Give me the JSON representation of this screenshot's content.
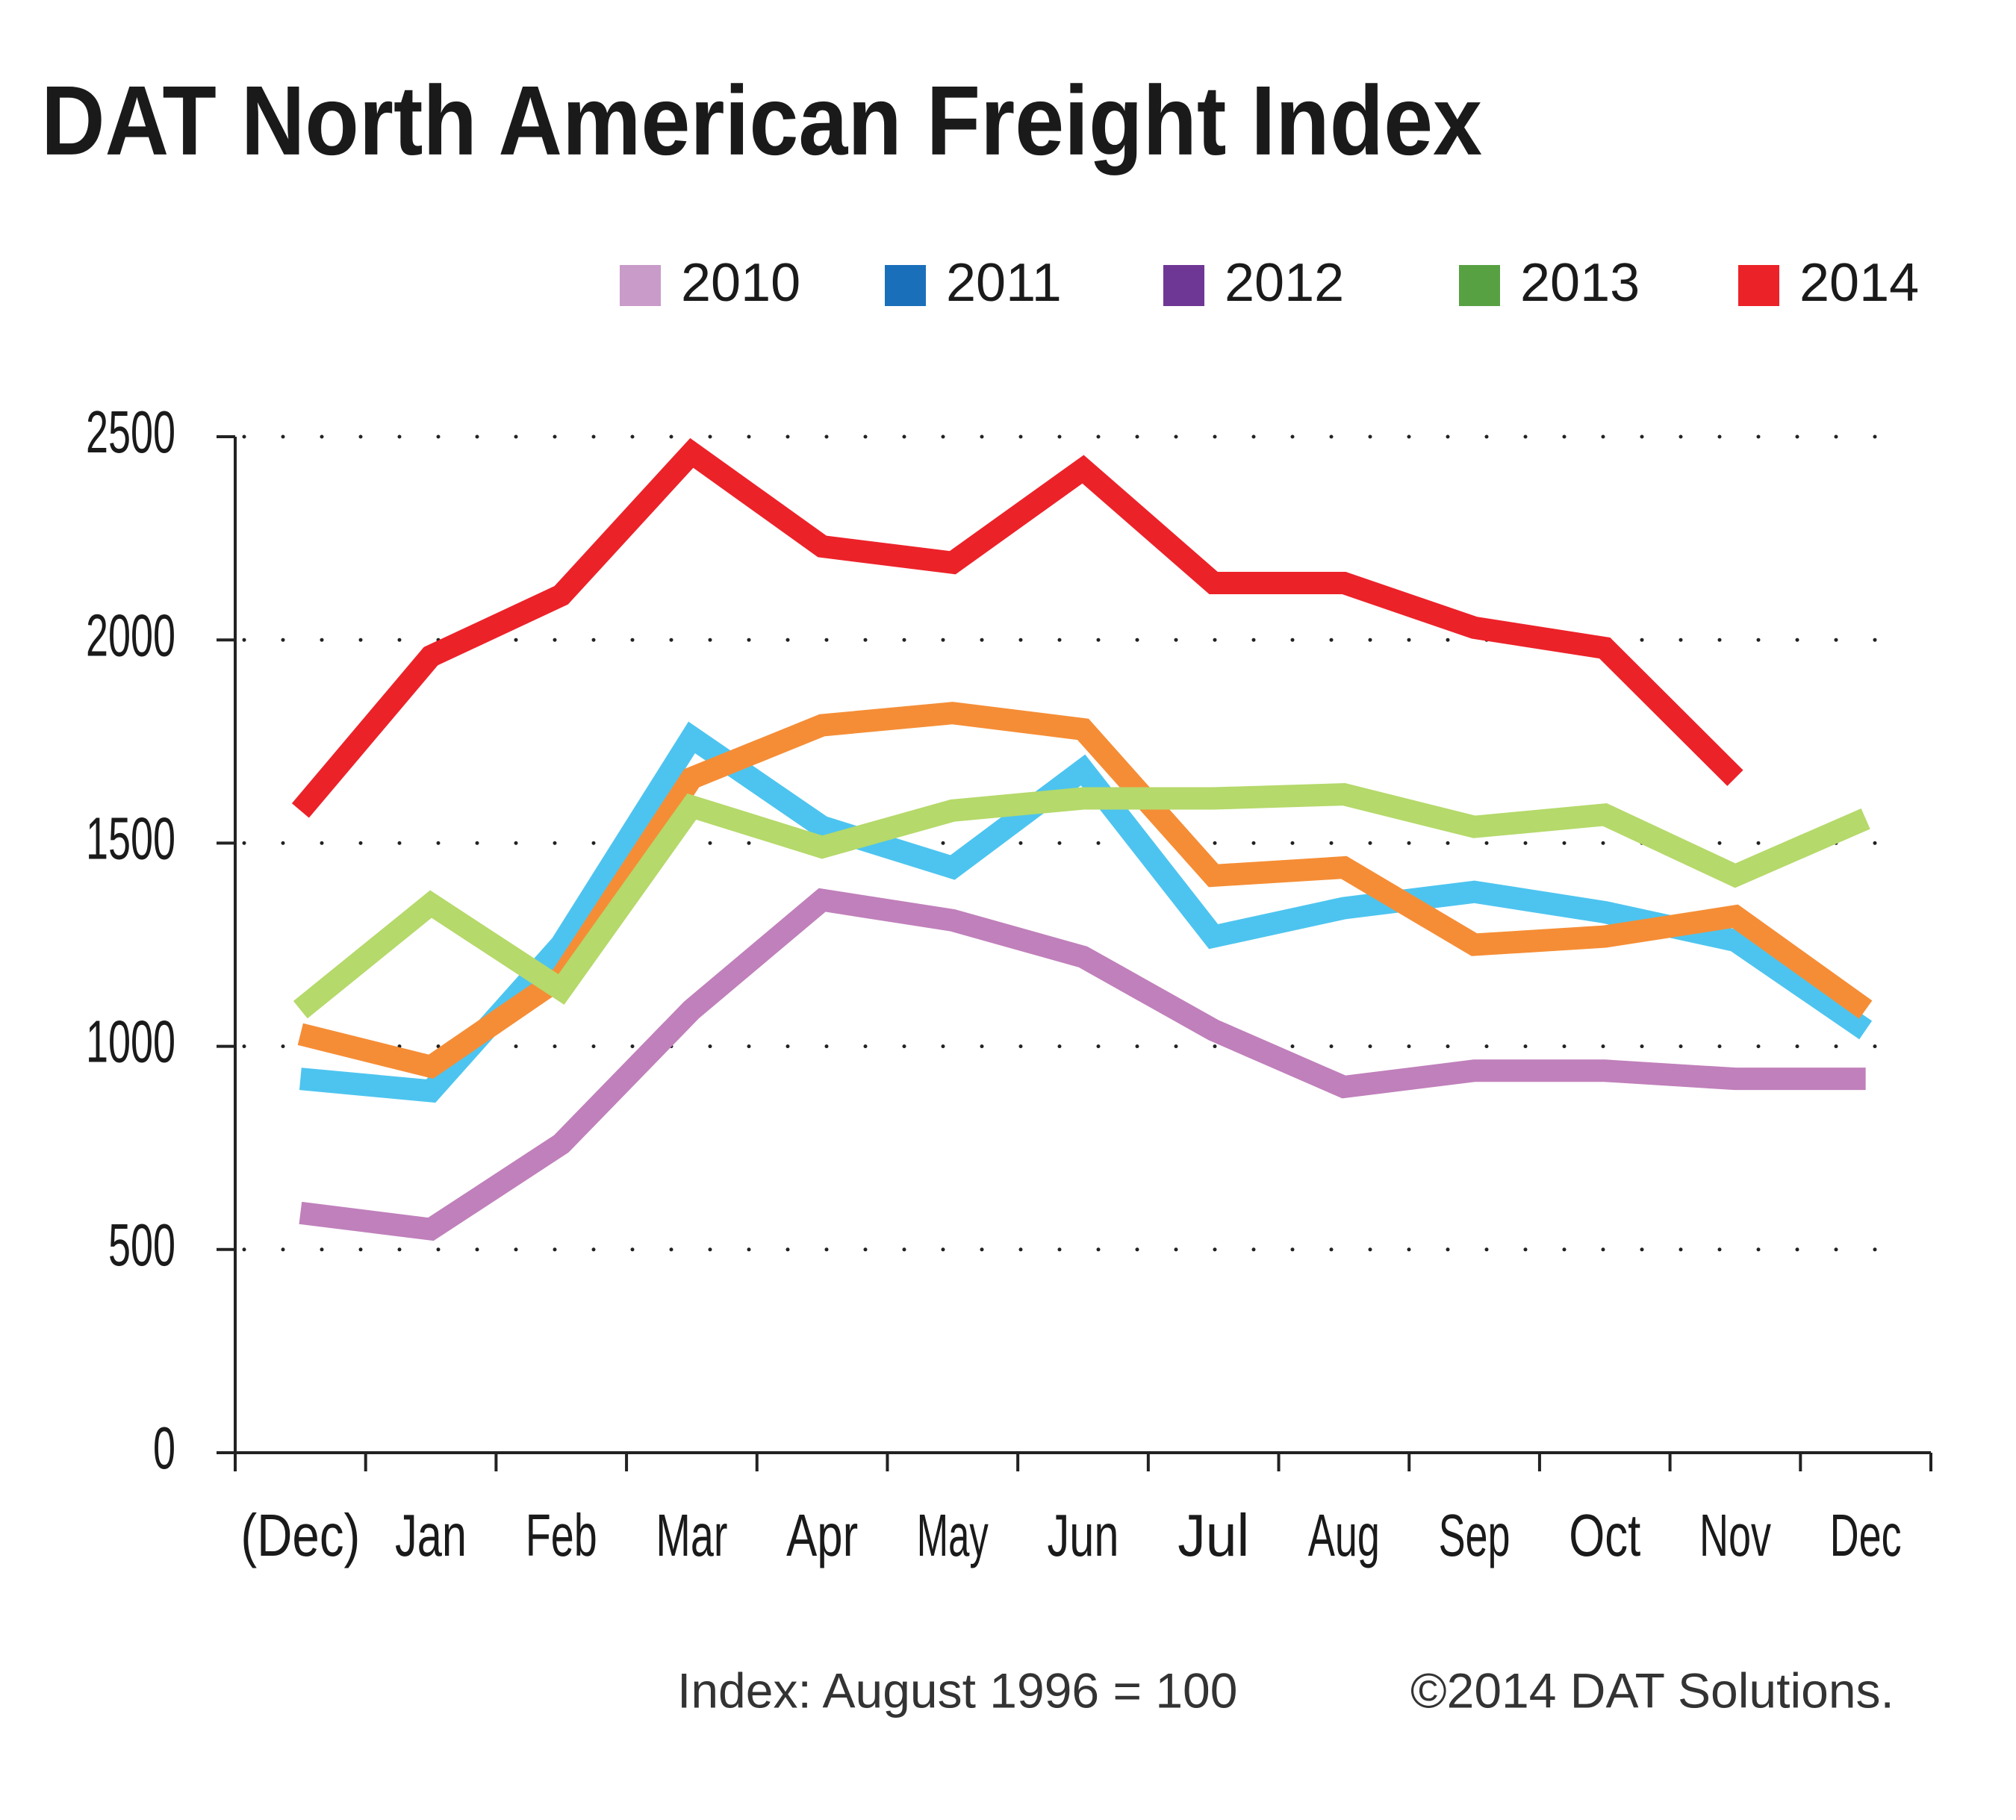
{
  "chart_data": {
    "type": "line",
    "title": "DAT North American Freight Index",
    "categories": [
      "(Dec)",
      "Jan",
      "Feb",
      "Mar",
      "Apr",
      "May",
      "Jun",
      "Jul",
      "Aug",
      "Sep",
      "Oct",
      "Nov",
      "Dec"
    ],
    "series": [
      {
        "name": "2010",
        "color": "#c080bb",
        "legend_color": "#c99bc9",
        "values": [
          590,
          550,
          760,
          1090,
          1360,
          1310,
          1220,
          1040,
          900,
          940,
          940,
          920,
          920
        ]
      },
      {
        "name": "2011",
        "color": "#4dc4ef",
        "legend_color": "#1a6fba",
        "values": [
          920,
          890,
          1250,
          1760,
          1540,
          1440,
          1680,
          1270,
          1340,
          1380,
          1330,
          1260,
          1040
        ]
      },
      {
        "name": "2012",
        "color": "#f58d36",
        "legend_color": "#6f3795",
        "values": [
          1030,
          950,
          1170,
          1660,
          1790,
          1820,
          1780,
          1420,
          1440,
          1250,
          1270,
          1320,
          1090
        ]
      },
      {
        "name": "2013",
        "color": "#b5d96a",
        "legend_color": "#57a143",
        "values": [
          1090,
          1350,
          1140,
          1590,
          1490,
          1580,
          1610,
          1610,
          1620,
          1540,
          1570,
          1420,
          1560
        ]
      },
      {
        "name": "2014",
        "color": "#ec2229",
        "legend_color": "#ec2229",
        "values": [
          1580,
          1960,
          2110,
          2460,
          2230,
          2190,
          2420,
          2140,
          2140,
          2030,
          1980,
          1660,
          null
        ]
      }
    ],
    "ylim": [
      0,
      2500
    ],
    "yticks": [
      0,
      500,
      1000,
      1500,
      2000,
      2500
    ],
    "grid": true,
    "footnotes": [
      "Index: August  1996 = 100",
      "©2014 DAT Solutions."
    ]
  }
}
